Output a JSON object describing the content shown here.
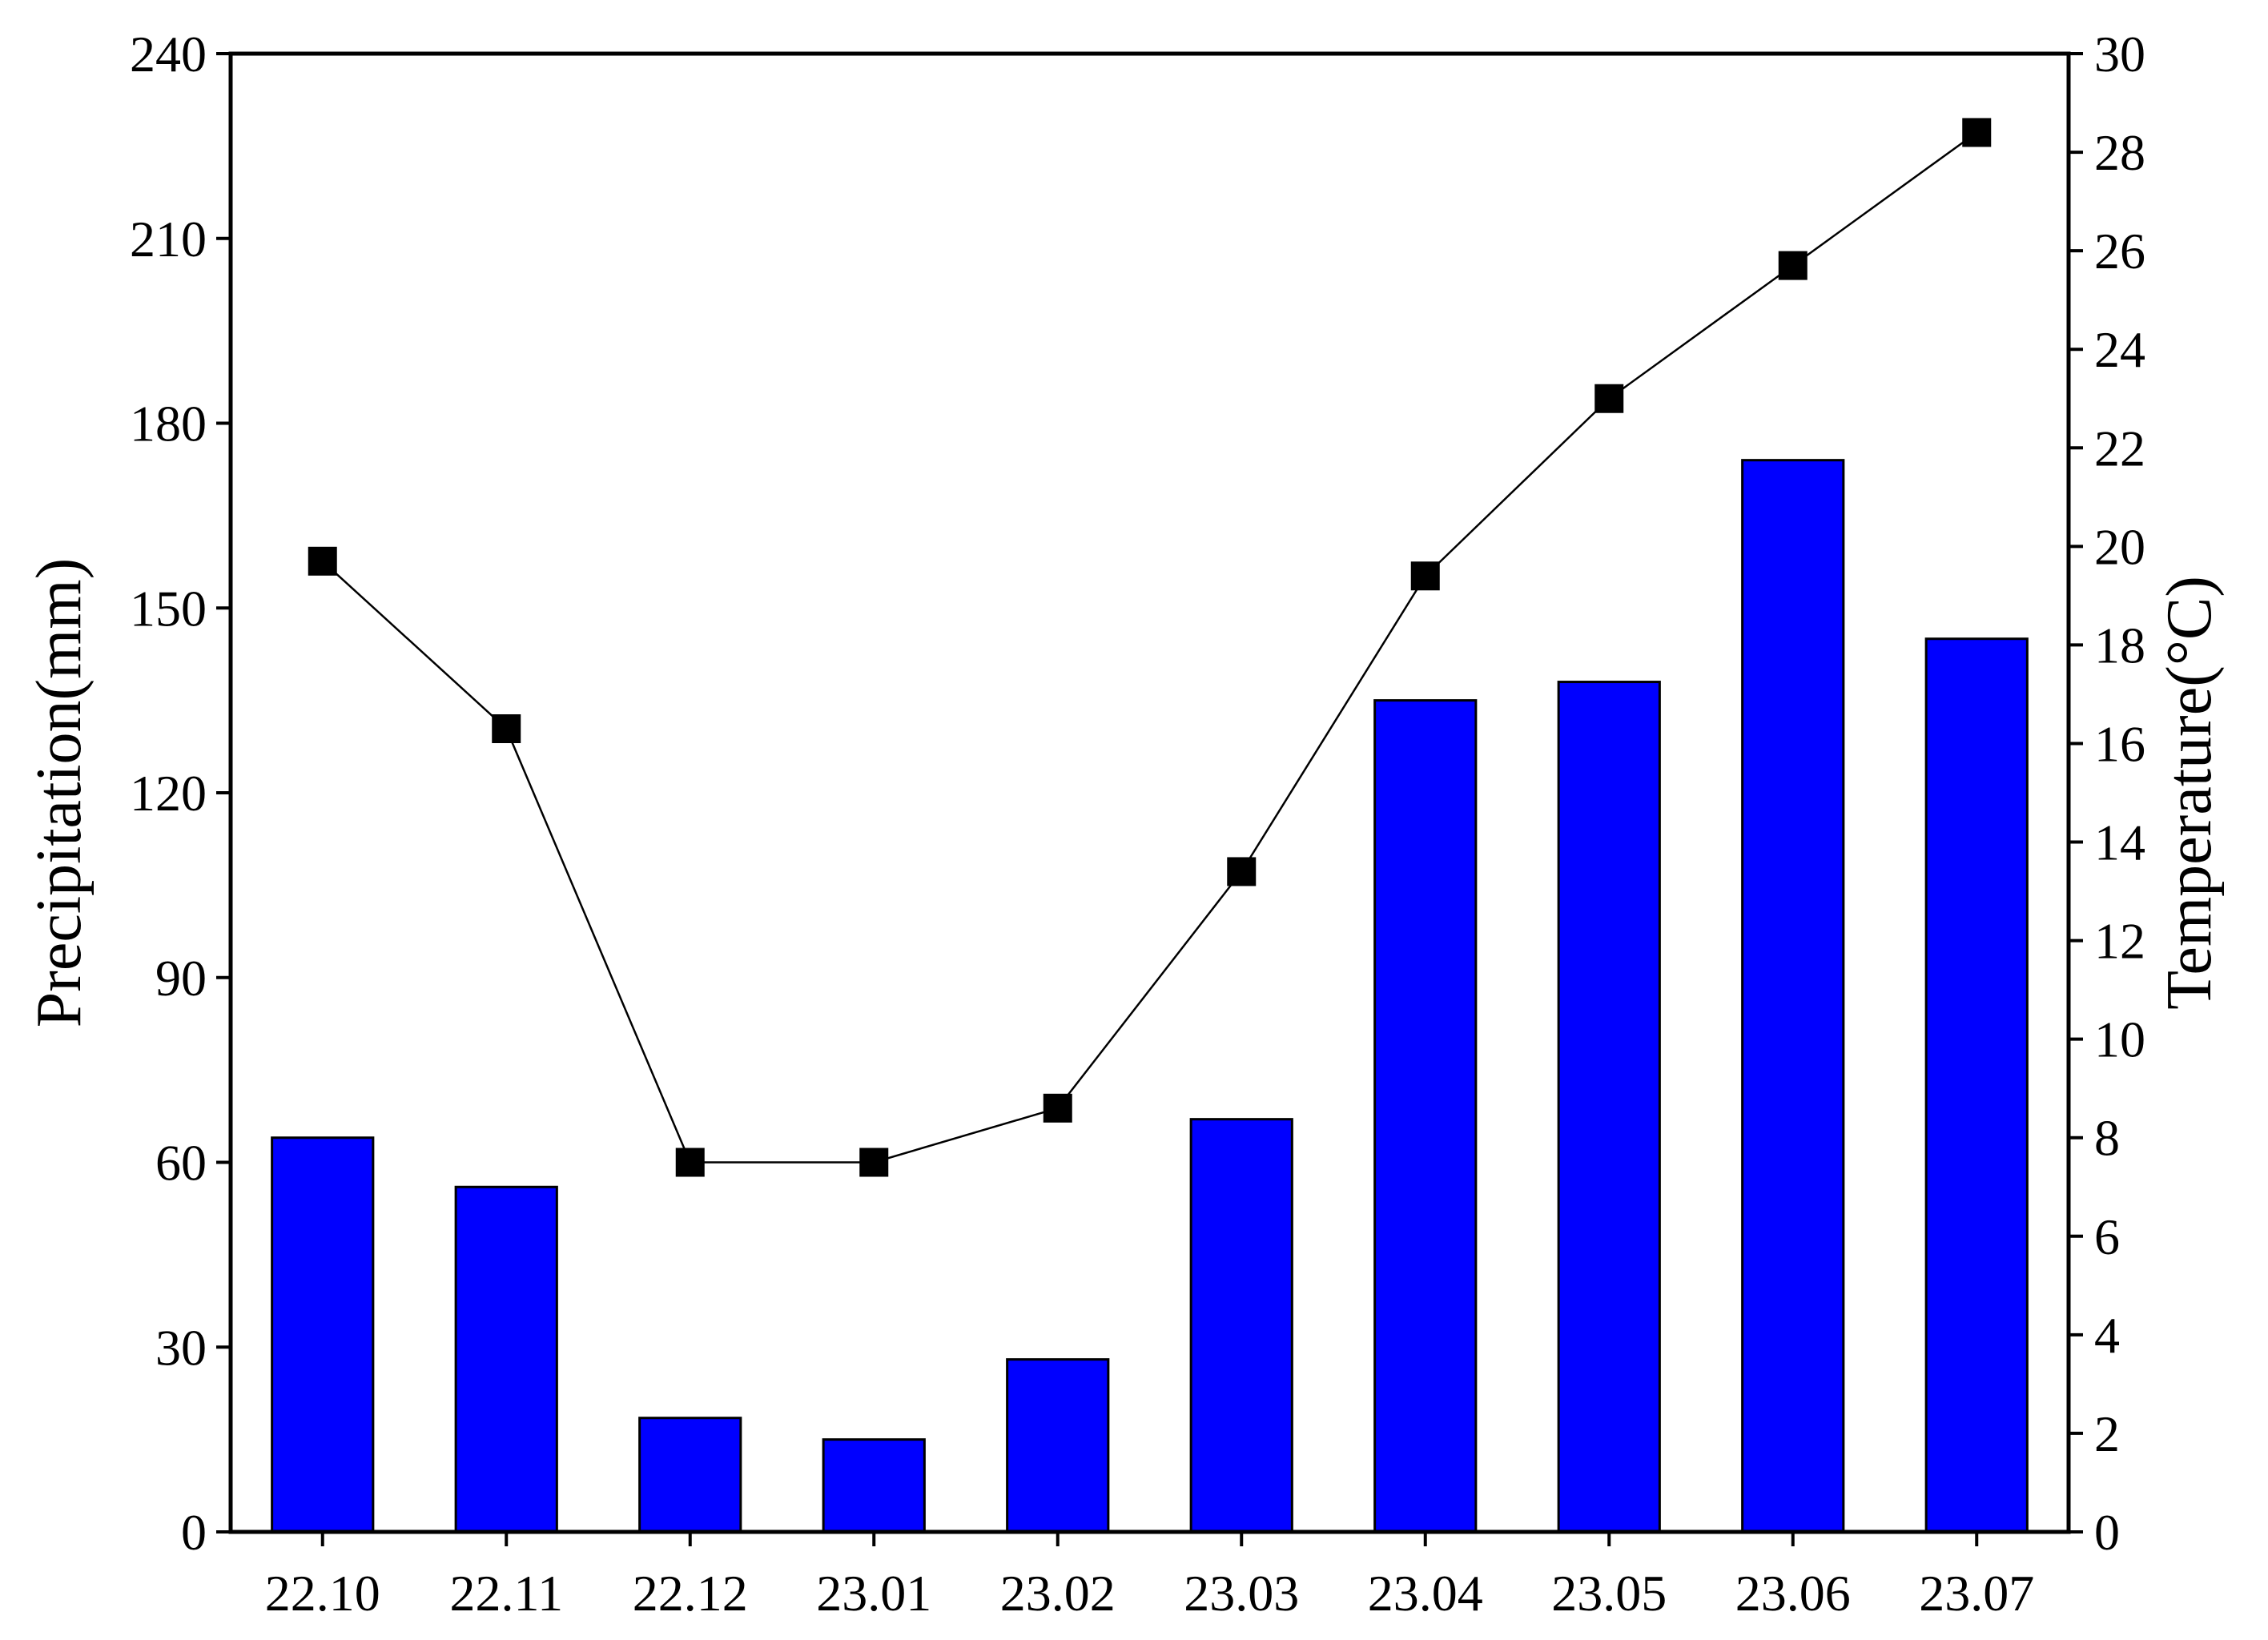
{
  "chart_data": {
    "type": "bar",
    "categories": [
      "22.10",
      "22.11",
      "22.12",
      "23.01",
      "23.02",
      "23.03",
      "23.04",
      "23.05",
      "23.06",
      "23.07"
    ],
    "series": [
      {
        "type": "bar",
        "axis": "left",
        "color": "#0000ff",
        "values": [
          64,
          56,
          18.5,
          15,
          28,
          67,
          135,
          138,
          174,
          145
        ]
      },
      {
        "type": "line",
        "axis": "right",
        "color": "#000000",
        "marker": "square",
        "values": [
          19.7,
          16.3,
          7.5,
          7.5,
          8.6,
          13.4,
          19.4,
          23.0,
          25.7,
          28.4
        ]
      }
    ],
    "ylabel": "Precipitation(mm)",
    "y2label": "Temperature(°C)",
    "xlabel": "",
    "ylim": [
      0,
      240
    ],
    "y2lim": [
      0,
      30
    ],
    "yticks": [
      "0",
      "30",
      "60",
      "90",
      "120",
      "150",
      "180",
      "210",
      "240"
    ],
    "y2ticks": [
      "0",
      "2",
      "4",
      "6",
      "8",
      "10",
      "12",
      "14",
      "16",
      "18",
      "20",
      "22",
      "24",
      "26",
      "28",
      "30"
    ],
    "grid": false,
    "legend": "none"
  }
}
